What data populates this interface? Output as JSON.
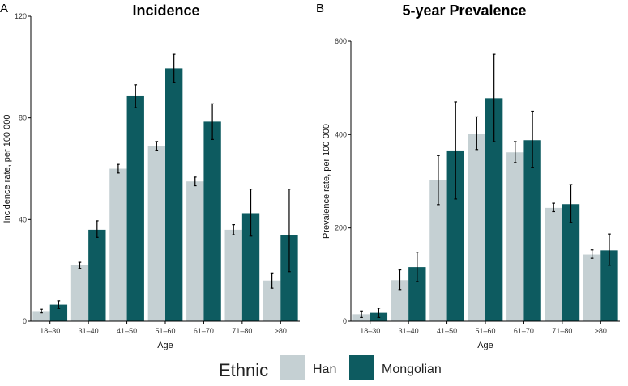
{
  "colors": {
    "han": "#c5d0d3",
    "mongolian": "#0d5b60",
    "axis": "#000000",
    "errorbar": "#000000"
  },
  "legend": {
    "title": "Ethnic",
    "items": [
      "Han",
      "Mongolian"
    ]
  },
  "chart_data": [
    {
      "panel": "A",
      "type": "bar",
      "title": "Incidence",
      "xlabel": "Age",
      "ylabel": "Incidence rate, per 100 000",
      "ylim": [
        0,
        120
      ],
      "yticks": [
        0,
        40,
        80,
        120
      ],
      "categories": [
        "18–30",
        "31–40",
        "41–50",
        "51–60",
        "61–70",
        "71–80",
        ">80"
      ],
      "series": [
        {
          "name": "Han",
          "values": [
            4,
            22,
            60,
            69,
            55,
            36,
            16
          ],
          "err_low": [
            3.3,
            20.8,
            58.3,
            67.3,
            53.3,
            34,
            13
          ],
          "err_high": [
            4.7,
            23.2,
            61.7,
            70.7,
            56.7,
            38,
            19
          ]
        },
        {
          "name": "Mongolian",
          "values": [
            6.5,
            36,
            88.5,
            99.5,
            78.5,
            42.5,
            34
          ],
          "err_low": [
            5,
            33,
            84,
            94,
            71.5,
            33.5,
            19.5
          ],
          "err_high": [
            8,
            39.5,
            93,
            105,
            85.5,
            52,
            52
          ]
        }
      ]
    },
    {
      "panel": "B",
      "type": "bar",
      "title": "5-year Prevalence",
      "xlabel": "Age",
      "ylabel": "Prevalence rate, per 100 000",
      "ylim": [
        0,
        600
      ],
      "yticks": [
        0,
        200,
        400,
        600
      ],
      "categories": [
        "18–30",
        "31–40",
        "41–50",
        "51–60",
        "61–70",
        "71–80",
        ">80"
      ],
      "series": [
        {
          "name": "Han",
          "values": [
            15,
            88,
            302,
            402,
            362,
            243,
            143
          ],
          "err_low": [
            8,
            68,
            250,
            368,
            340,
            235,
            135
          ],
          "err_high": [
            22,
            110,
            355,
            438,
            385,
            253,
            153
          ]
        },
        {
          "name": "Mongolian",
          "values": [
            18,
            116,
            366,
            478,
            388,
            251,
            152
          ],
          "err_low": [
            8,
            85,
            262,
            385,
            330,
            212,
            120
          ],
          "err_high": [
            28,
            148,
            470,
            572,
            450,
            293,
            187
          ]
        }
      ]
    }
  ]
}
